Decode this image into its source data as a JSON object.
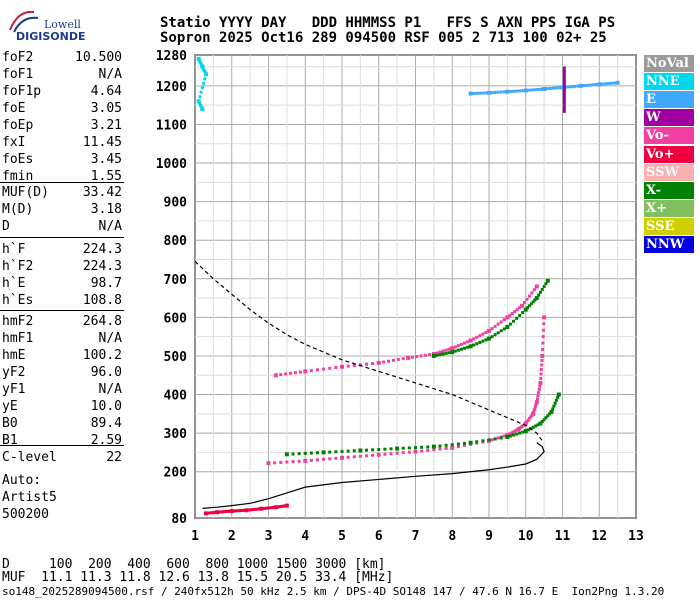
{
  "logo": {
    "line1": "Lowell",
    "line2": "DIGISONDE"
  },
  "header": {
    "line1": "Statio YYYY DAY   DDD HHMMSS P1   FFS S AXN PPS IGA PS",
    "line2": "Sopron 2025 Oct16 289 094500 RSF 005 2 713 100 02+ 25"
  },
  "params_group1": [
    {
      "name": "foF2",
      "value": "10.500"
    },
    {
      "name": "foF1",
      "value": "N/A"
    },
    {
      "name": "foF1p",
      "value": "4.64"
    },
    {
      "name": "foE",
      "value": "3.05"
    },
    {
      "name": "foEp",
      "value": "3.21"
    },
    {
      "name": "fxI",
      "value": "11.45"
    },
    {
      "name": "foEs",
      "value": "3.45"
    },
    {
      "name": "fmin",
      "value": "1.55"
    }
  ],
  "params_group2": [
    {
      "name": "MUF(D)",
      "value": "33.42"
    },
    {
      "name": "M(D)",
      "value": "3.18"
    },
    {
      "name": "D",
      "value": "N/A"
    }
  ],
  "params_group3": [
    {
      "name": "h`F",
      "value": "224.3"
    },
    {
      "name": "h`F2",
      "value": "224.3"
    },
    {
      "name": "h`E",
      "value": "98.7"
    },
    {
      "name": "h`Es",
      "value": "108.8"
    }
  ],
  "params_group4": [
    {
      "name": "hmF2",
      "value": "264.8"
    },
    {
      "name": "hmF1",
      "value": "N/A"
    },
    {
      "name": "hmE",
      "value": "100.2"
    },
    {
      "name": "yF2",
      "value": "96.0"
    },
    {
      "name": "yF1",
      "value": "N/A"
    },
    {
      "name": "yE",
      "value": "10.0"
    },
    {
      "name": "B0",
      "value": "89.4"
    },
    {
      "name": "B1",
      "value": "2.59"
    }
  ],
  "params_group5": [
    {
      "name": "C-level",
      "value": "22"
    }
  ],
  "auto": {
    "line1": "Auto:",
    "line2": "Artist5",
    "line3": "500200"
  },
  "legend": [
    {
      "label": "NoVal",
      "color": "#9a9a9a"
    },
    {
      "label": "NNE",
      "color": "#00d8f0"
    },
    {
      "label": "E",
      "color": "#40a8f8"
    },
    {
      "label": "W",
      "color": "#a000a0"
    },
    {
      "label": "Vo-",
      "color": "#f040a0"
    },
    {
      "label": "Vo+",
      "color": "#f00040"
    },
    {
      "label": "SSW",
      "color": "#f8b0b0"
    },
    {
      "label": "X-",
      "color": "#008000"
    },
    {
      "label": "X+",
      "color": "#80c060"
    },
    {
      "label": "SSE",
      "color": "#d0d000"
    },
    {
      "label": "NNW",
      "color": "#0000e0"
    }
  ],
  "bottom": {
    "d_line": "D     100  200  400  600  800 1000 1500 3000 [km]",
    "muf_line": "MUF  11.1 11.3 11.8 12.6 13.8 15.5 20.5 33.4 [MHz]",
    "footer": "so148_2025289094500.rsf / 240fx512h 50 kHz 2.5 km / DPS-4D SO148 147 / 47.6 N 16.7 E  Ion2Png 1.3.20"
  },
  "chart_data": {
    "type": "scatter",
    "xlabel": "",
    "ylabel": "",
    "xlim": [
      1,
      13
    ],
    "ylim": [
      80,
      1280
    ],
    "x_ticks": [
      1,
      2,
      3,
      4,
      5,
      6,
      7,
      8,
      9,
      10,
      11,
      12,
      13
    ],
    "y_ticks": [
      80,
      200,
      300,
      400,
      500,
      600,
      700,
      800,
      900,
      1000,
      1100,
      1200,
      1280
    ],
    "grid": true,
    "series": [
      {
        "name": "Vo-",
        "color": "#f040a0",
        "x": [
          3.0,
          4.0,
          5.0,
          6.0,
          7.0,
          8.0,
          9.0,
          9.5,
          9.8,
          10.0,
          10.2,
          10.3,
          10.4,
          10.45,
          10.5
        ],
        "y": [
          222,
          228,
          236,
          244,
          252,
          262,
          280,
          295,
          310,
          325,
          350,
          380,
          430,
          500,
          600
        ]
      },
      {
        "name": "X-",
        "color": "#008000",
        "x": [
          3.5,
          4.5,
          5.5,
          6.5,
          7.5,
          8.5,
          9.5,
          10.0,
          10.4,
          10.7,
          10.9
        ],
        "y": [
          245,
          250,
          255,
          260,
          265,
          275,
          290,
          305,
          325,
          355,
          400
        ]
      },
      {
        "name": "Vo- F1",
        "color": "#f040a0",
        "x": [
          3.2,
          4.0,
          5.0,
          6.0,
          6.8,
          7.5,
          8.0,
          8.5,
          9.0,
          9.5,
          9.9,
          10.3
        ],
        "y": [
          450,
          460,
          472,
          482,
          495,
          505,
          520,
          540,
          565,
          600,
          630,
          680
        ]
      },
      {
        "name": "X- F1",
        "color": "#008000",
        "x": [
          7.5,
          8.0,
          8.5,
          9.0,
          9.5,
          10.0,
          10.3,
          10.6
        ],
        "y": [
          500,
          510,
          525,
          545,
          575,
          620,
          650,
          695
        ]
      },
      {
        "name": "Es",
        "color": "#f00040",
        "x": [
          1.3,
          1.6,
          2.0,
          2.4,
          2.8,
          3.2,
          3.5
        ],
        "y": [
          92,
          95,
          98,
          100,
          104,
          108,
          112
        ]
      },
      {
        "name": "2hop",
        "color": "#40a8f8",
        "x": [
          8.5,
          9.0,
          9.5,
          10.0,
          10.5,
          11.0,
          11.5,
          12.0,
          12.5
        ],
        "y": [
          1180,
          1182,
          1185,
          1188,
          1192,
          1196,
          1200,
          1204,
          1208
        ]
      },
      {
        "name": "NNE",
        "color": "#00d8f0",
        "x": [
          1.1,
          1.2,
          1.3,
          1.1,
          1.2
        ],
        "y": [
          1270,
          1250,
          1230,
          1160,
          1140
        ]
      }
    ],
    "profile": {
      "x": [
        1.2,
        1.6,
        2.0,
        2.5,
        3.0,
        3.5,
        4.0,
        5.0,
        6.0,
        7.0,
        8.0,
        9.0,
        9.5,
        10.0,
        10.3,
        10.5,
        10.45,
        10.3
      ],
      "y": [
        105,
        108,
        112,
        118,
        130,
        145,
        160,
        172,
        180,
        188,
        195,
        205,
        212,
        220,
        232,
        252,
        265,
        275
      ]
    },
    "dashed_profile": {
      "x": [
        1.0,
        1.5,
        2.0,
        2.5,
        3.0,
        3.5,
        4.0,
        5.0,
        6.0,
        7.0,
        8.0,
        9.0,
        9.5,
        10.0,
        10.3,
        10.45
      ],
      "y": [
        745,
        700,
        660,
        620,
        585,
        555,
        530,
        490,
        460,
        430,
        400,
        360,
        340,
        320,
        300,
        280
      ]
    }
  }
}
